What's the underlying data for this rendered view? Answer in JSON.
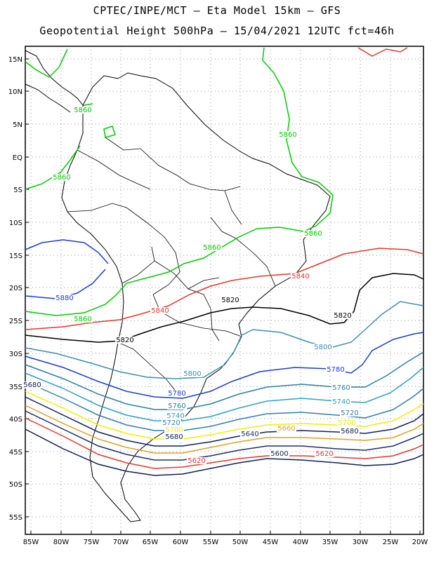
{
  "header": {
    "line1": "CPTEC/INPE/MCT –  Eta Model 15km – GFS",
    "line2": "Geopotential Height 500hPa – 15/04/2021 12UTC fct=46h"
  },
  "axes": {
    "lat_labels": [
      "15N",
      "10N",
      "5N",
      "EQ",
      "5S",
      "10S",
      "15S",
      "20S",
      "25S",
      "30S",
      "35S",
      "40S",
      "45S",
      "50S",
      "55S"
    ],
    "lon_labels": [
      "85W",
      "80W",
      "75W",
      "70W",
      "65W",
      "60W",
      "55W",
      "50W",
      "45W",
      "40W",
      "35W",
      "30W",
      "25W",
      "20W"
    ]
  },
  "colors": {
    "5860": "#00cc00",
    "5840": "#e8352a",
    "5820": "#000000",
    "5800": "#3a8fb0",
    "5780": "#1a3cd8",
    "5760": "#2a7fa8",
    "5740": "#2aa0c8",
    "5720": "#3080b0",
    "5700": "#f0f000",
    "5680": "#102060",
    "5660": "#e0a020",
    "5640": "#1a3070",
    "5620": "#e8352a",
    "5600": "#10205a"
  },
  "contour_labels": [
    {
      "text": "5860",
      "color": "5860"
    },
    {
      "text": "5860",
      "color": "5860"
    },
    {
      "text": "5860",
      "color": "5860"
    },
    {
      "text": "5860",
      "color": "5860"
    },
    {
      "text": "5860",
      "color": "5860"
    },
    {
      "text": "5860",
      "color": "5860"
    },
    {
      "text": "5880",
      "color": "5780"
    },
    {
      "text": "5840",
      "color": "5840"
    },
    {
      "text": "5840",
      "color": "5840"
    },
    {
      "text": "5820",
      "color": "5820"
    },
    {
      "text": "5820",
      "color": "5820"
    },
    {
      "text": "5820",
      "color": "5820"
    },
    {
      "text": "5800",
      "color": "5800"
    },
    {
      "text": "5800",
      "color": "5800"
    },
    {
      "text": "5780",
      "color": "5780"
    },
    {
      "text": "5780",
      "color": "5780"
    },
    {
      "text": "5760",
      "color": "5760"
    },
    {
      "text": "5760",
      "color": "5760"
    },
    {
      "text": "5740",
      "color": "5740"
    },
    {
      "text": "5740",
      "color": "5740"
    },
    {
      "text": "5720",
      "color": "5720"
    },
    {
      "text": "5720",
      "color": "5720"
    },
    {
      "text": "5700",
      "color": "5700"
    },
    {
      "text": "5700",
      "color": "5700"
    },
    {
      "text": "5680",
      "color": "5680"
    },
    {
      "text": "5680",
      "color": "5680"
    },
    {
      "text": "5680",
      "color": "5680"
    },
    {
      "text": "5660",
      "color": "5660"
    },
    {
      "text": "5640",
      "color": "5640"
    },
    {
      "text": "5620",
      "color": "5620"
    },
    {
      "text": "5620",
      "color": "5620"
    },
    {
      "text": "5600",
      "color": "5600"
    }
  ]
}
